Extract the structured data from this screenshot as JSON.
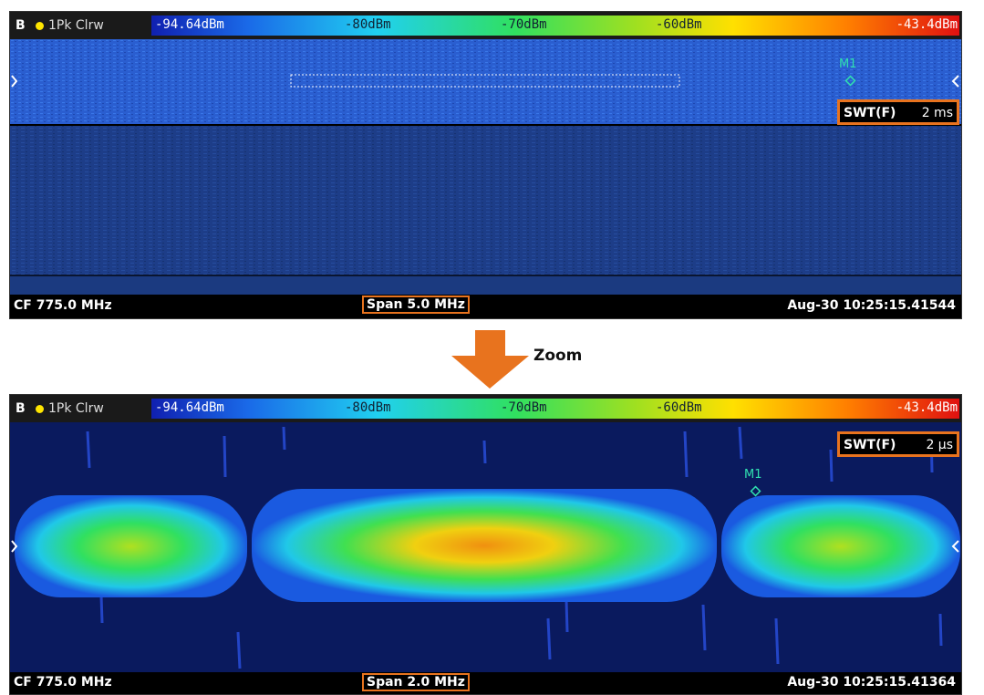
{
  "panels": [
    {
      "trace_label": "B",
      "trace_mode": "1Pk Clrw",
      "scale_labels": [
        "-94.64dBm",
        "-80dBm",
        "-70dBm",
        "-60dBm",
        "-43.4dBm"
      ],
      "marker": "M1",
      "sweep_label": "SWT(F)",
      "sweep_value": "2 ms",
      "center_freq": "CF 775.0 MHz",
      "span": "Span 5.0 MHz",
      "timestamp": "Aug-30 10:25:15.41544"
    },
    {
      "trace_label": "B",
      "trace_mode": "1Pk Clrw",
      "scale_labels": [
        "-94.64dBm",
        "-80dBm",
        "-70dBm",
        "-60dBm",
        "-43.4dBm"
      ],
      "marker": "M1",
      "sweep_label": "SWT(F)",
      "sweep_value": "2 µs",
      "center_freq": "CF 775.0 MHz",
      "span": "Span 2.0 MHz",
      "timestamp": "Aug-30 10:25:15.41364"
    }
  ],
  "zoom_label": "Zoom"
}
